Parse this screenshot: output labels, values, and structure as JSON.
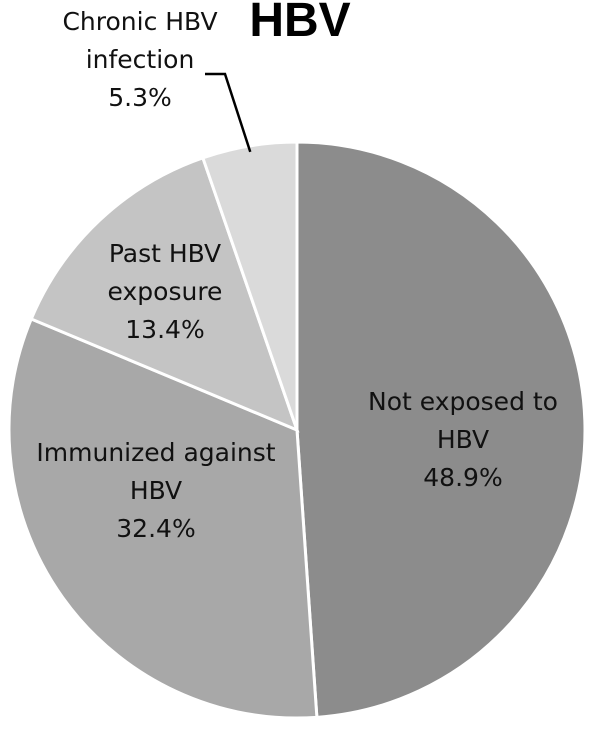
{
  "chart_data": {
    "type": "pie",
    "title": "HBV",
    "slices": [
      {
        "category": "Not exposed to HBV",
        "value": 48.9,
        "label_lines": [
          "Not exposed to",
          "HBV",
          "48.9%"
        ],
        "color": "#8c8c8c"
      },
      {
        "category": "Immunized against HBV",
        "value": 32.4,
        "label_lines": [
          "Immunized against",
          "HBV",
          "32.4%"
        ],
        "color": "#a8a8a8"
      },
      {
        "category": "Past HBV exposure",
        "value": 13.4,
        "label_lines": [
          "Past HBV",
          "exposure",
          "13.4%"
        ],
        "color": "#c4c4c4"
      },
      {
        "category": "Chronic HBV infection",
        "value": 5.3,
        "label_lines": [
          "Chronic HBV",
          "infection",
          "5.3%"
        ],
        "color": "#dadada"
      }
    ],
    "start_angle": "12 o'clock",
    "direction": "clockwise",
    "legend": "none",
    "slice_border_color": "#ffffff"
  }
}
